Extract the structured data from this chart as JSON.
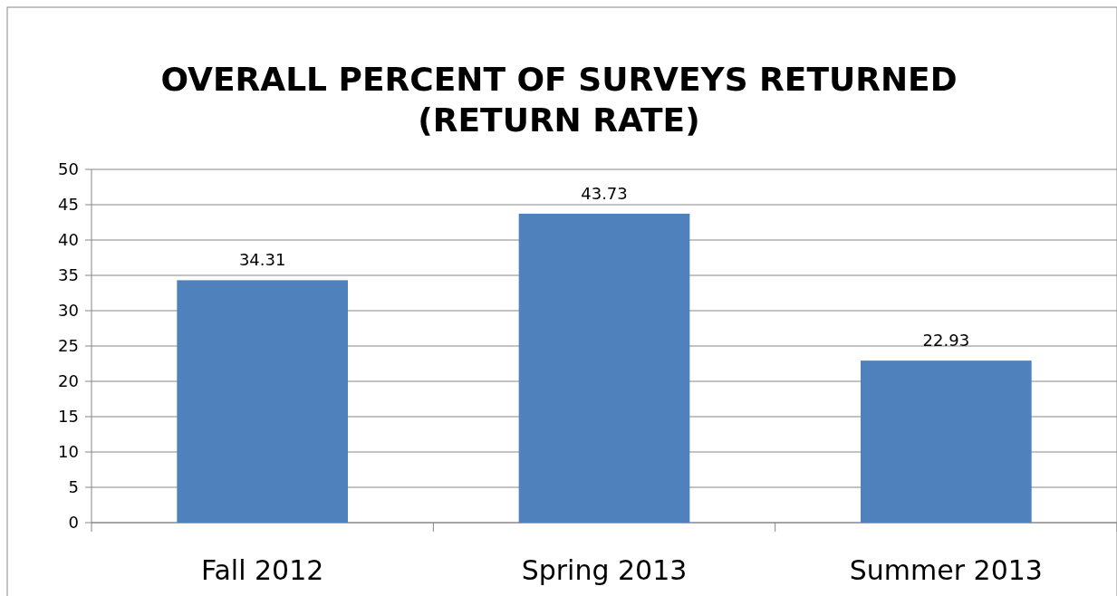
{
  "chart_data": {
    "type": "bar",
    "title": "OVERALL PERCENT OF SURVEYS RETURNED (RETURN RATE)",
    "categories": [
      "Fall 2012",
      "Spring 2013",
      "Summer 2013"
    ],
    "values": [
      34.31,
      43.73,
      22.93
    ],
    "color": "#4f81bd",
    "ylim": [
      0,
      50
    ],
    "yticks": [
      0,
      5,
      10,
      15,
      20,
      25,
      30,
      35,
      40,
      45,
      50
    ],
    "grid": "y",
    "data_labels": true
  }
}
